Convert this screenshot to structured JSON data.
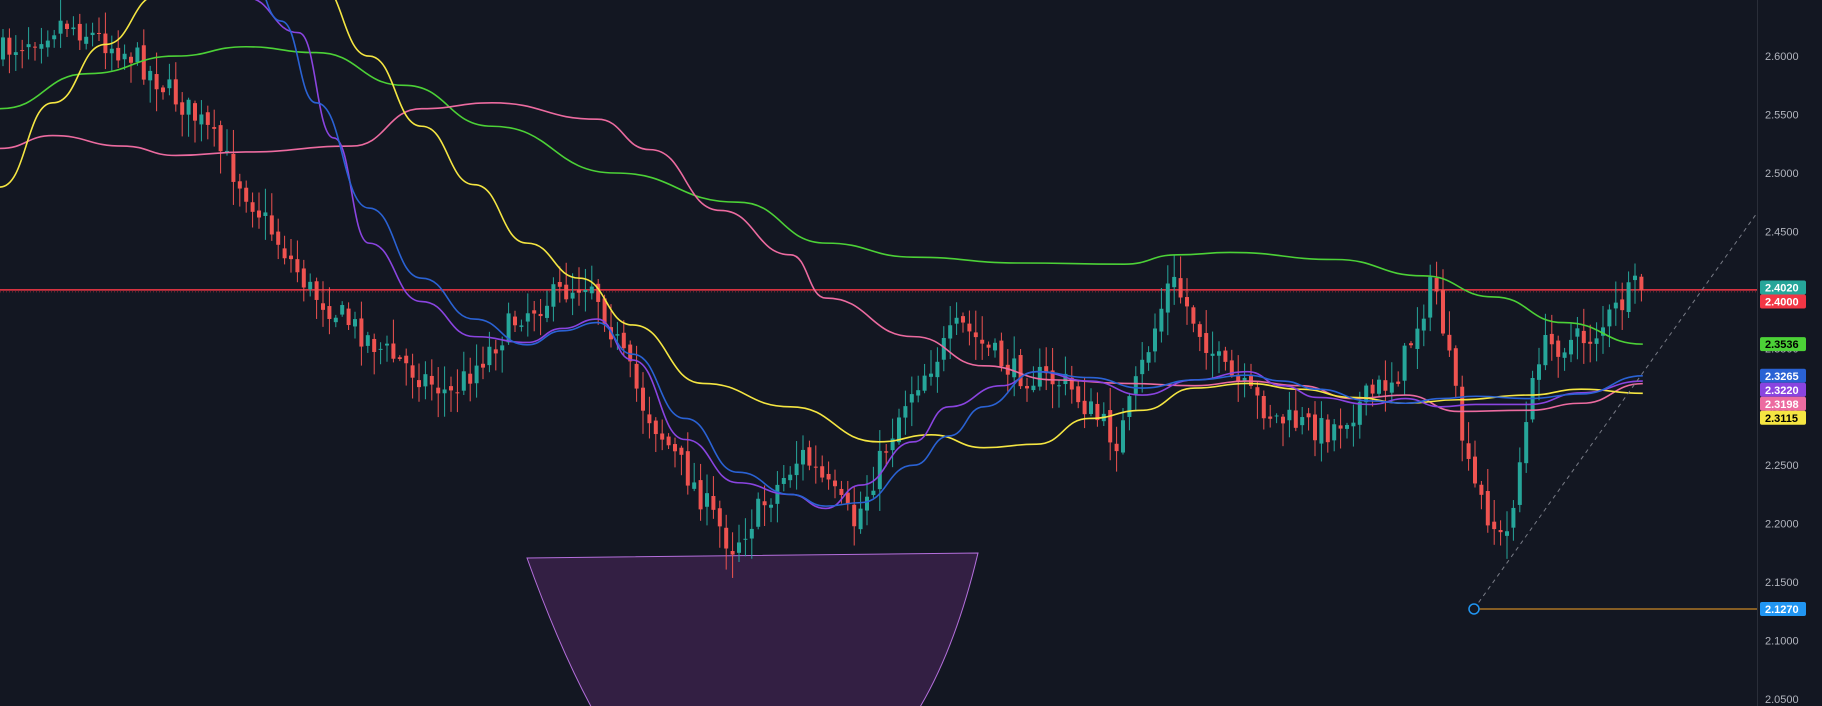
{
  "chart_data": {
    "type": "candlestick",
    "y_axis": {
      "position": "right",
      "ticks": [
        "2.6000",
        "2.5500",
        "2.5000",
        "2.4500",
        "2.4000",
        "2.3500",
        "2.3000",
        "2.2500",
        "2.2000",
        "2.1500",
        "2.1000",
        "2.0500"
      ],
      "ylim": [
        2.044,
        2.648
      ]
    },
    "colors": {
      "background": "#131722",
      "up_candle": "#26a69a",
      "down_candle": "#ef5350",
      "horizontal_line": "#f23645",
      "ma_green": "#4cd137",
      "ma_pink": "#ec6ba0",
      "ma_yellow": "#f5e642",
      "ma_purple": "#8a44e0",
      "ma_blue": "#2a62d4",
      "trendline": "#787b86",
      "low_marker": "#2196f3",
      "low_line": "#f7a325",
      "shape_fill": "#3a2149",
      "shape_stroke": "#b46fdc"
    },
    "horizontal_level": 2.4,
    "low_marker": {
      "price": 2.127,
      "label": "2.1270"
    },
    "price_tags": [
      {
        "label": "2.4020",
        "price": 2.402,
        "color": "#26a69a",
        "text_color": "#ffffff"
      },
      {
        "label": "2.4000",
        "price": 2.4,
        "color": "#f23645",
        "text_color": "#ffffff"
      },
      {
        "label": "2.3536",
        "price": 2.3536,
        "color": "#4cd137",
        "text_color": "#000000"
      },
      {
        "label": "2.3265",
        "price": 2.3265,
        "color": "#2a62d4",
        "text_color": "#ffffff"
      },
      {
        "label": "2.3220",
        "price": 2.322,
        "color": "#8a44e0",
        "text_color": "#ffffff"
      },
      {
        "label": "2.3198",
        "price": 2.3198,
        "color": "#ec6ba0",
        "text_color": "#ffffff"
      },
      {
        "label": "2.3115",
        "price": 2.3115,
        "color": "#f5e642",
        "text_color": "#000000"
      },
      {
        "label": "2.1270",
        "price": 2.127,
        "color": "#2196f3",
        "text_color": "#ffffff"
      }
    ],
    "candle_segments": [
      [
        0.0,
        2.6
      ],
      [
        0.04,
        2.63
      ],
      [
        0.08,
        2.6
      ],
      [
        0.12,
        2.54
      ],
      [
        0.15,
        2.47
      ],
      [
        0.18,
        2.4
      ],
      [
        0.22,
        2.35
      ],
      [
        0.26,
        2.31
      ],
      [
        0.3,
        2.38
      ],
      [
        0.34,
        2.41
      ],
      [
        0.37,
        2.3
      ],
      [
        0.4,
        2.23
      ],
      [
        0.42,
        2.18
      ],
      [
        0.46,
        2.26
      ],
      [
        0.49,
        2.2
      ],
      [
        0.52,
        2.31
      ],
      [
        0.55,
        2.37
      ],
      [
        0.58,
        2.33
      ],
      [
        0.61,
        2.32
      ],
      [
        0.64,
        2.27
      ],
      [
        0.67,
        2.41
      ],
      [
        0.7,
        2.33
      ],
      [
        0.73,
        2.29
      ],
      [
        0.76,
        2.28
      ],
      [
        0.8,
        2.33
      ],
      [
        0.82,
        2.41
      ],
      [
        0.84,
        2.24
      ],
      [
        0.86,
        2.18
      ],
      [
        0.88,
        2.35
      ],
      [
        0.91,
        2.36
      ],
      [
        0.935,
        2.402
      ]
    ],
    "moving_averages": [
      {
        "key": "ma_green",
        "points": [
          [
            0.0,
            2.555
          ],
          [
            0.05,
            2.585
          ],
          [
            0.1,
            2.6
          ],
          [
            0.14,
            2.608
          ],
          [
            0.18,
            2.603
          ],
          [
            0.23,
            2.575
          ],
          [
            0.28,
            2.54
          ],
          [
            0.35,
            2.5
          ],
          [
            0.42,
            2.475
          ],
          [
            0.47,
            2.44
          ],
          [
            0.52,
            2.428
          ],
          [
            0.58,
            2.423
          ],
          [
            0.64,
            2.422
          ],
          [
            0.67,
            2.43
          ],
          [
            0.7,
            2.432
          ],
          [
            0.76,
            2.426
          ],
          [
            0.81,
            2.412
          ],
          [
            0.85,
            2.394
          ],
          [
            0.89,
            2.372
          ],
          [
            0.935,
            2.3536
          ]
        ]
      },
      {
        "key": "ma_pink",
        "points": [
          [
            0.0,
            2.521
          ],
          [
            0.03,
            2.532
          ],
          [
            0.07,
            2.523
          ],
          [
            0.1,
            2.515
          ],
          [
            0.14,
            2.518
          ],
          [
            0.2,
            2.523
          ],
          [
            0.24,
            2.555
          ],
          [
            0.28,
            2.56
          ],
          [
            0.34,
            2.546
          ],
          [
            0.37,
            2.52
          ],
          [
            0.41,
            2.468
          ],
          [
            0.45,
            2.43
          ],
          [
            0.47,
            2.393
          ],
          [
            0.52,
            2.36
          ],
          [
            0.56,
            2.335
          ],
          [
            0.6,
            2.323
          ],
          [
            0.64,
            2.32
          ],
          [
            0.68,
            2.318
          ],
          [
            0.71,
            2.322
          ],
          [
            0.74,
            2.318
          ],
          [
            0.77,
            2.307
          ],
          [
            0.8,
            2.31
          ],
          [
            0.83,
            2.296
          ],
          [
            0.87,
            2.297
          ],
          [
            0.9,
            2.303
          ],
          [
            0.935,
            2.3198
          ]
        ]
      },
      {
        "key": "ma_yellow",
        "points": [
          [
            0.0,
            2.488
          ],
          [
            0.03,
            2.56
          ],
          [
            0.06,
            2.61
          ],
          [
            0.09,
            2.652
          ],
          [
            0.13,
            2.67
          ],
          [
            0.18,
            2.665
          ],
          [
            0.21,
            2.6
          ],
          [
            0.24,
            2.54
          ],
          [
            0.27,
            2.49
          ],
          [
            0.3,
            2.44
          ],
          [
            0.33,
            2.41
          ],
          [
            0.36,
            2.37
          ],
          [
            0.4,
            2.32
          ],
          [
            0.45,
            2.3
          ],
          [
            0.5,
            2.27
          ],
          [
            0.53,
            2.276
          ],
          [
            0.56,
            2.265
          ],
          [
            0.59,
            2.268
          ],
          [
            0.62,
            2.29
          ],
          [
            0.65,
            2.297
          ],
          [
            0.68,
            2.316
          ],
          [
            0.71,
            2.32
          ],
          [
            0.74,
            2.315
          ],
          [
            0.77,
            2.308
          ],
          [
            0.8,
            2.303
          ],
          [
            0.83,
            2.306
          ],
          [
            0.87,
            2.31
          ],
          [
            0.9,
            2.315
          ],
          [
            0.935,
            2.3115
          ]
        ]
      },
      {
        "key": "ma_purple",
        "points": [
          [
            0.11,
            2.66
          ],
          [
            0.14,
            2.65
          ],
          [
            0.17,
            2.62
          ],
          [
            0.19,
            2.53
          ],
          [
            0.21,
            2.44
          ],
          [
            0.24,
            2.39
          ],
          [
            0.27,
            2.36
          ],
          [
            0.3,
            2.355
          ],
          [
            0.32,
            2.367
          ],
          [
            0.34,
            2.375
          ],
          [
            0.36,
            2.34
          ],
          [
            0.39,
            2.272
          ],
          [
            0.42,
            2.235
          ],
          [
            0.45,
            2.225
          ],
          [
            0.47,
            2.213
          ],
          [
            0.49,
            2.233
          ],
          [
            0.52,
            2.27
          ],
          [
            0.54,
            2.3
          ],
          [
            0.57,
            2.318
          ],
          [
            0.59,
            2.33
          ],
          [
            0.62,
            2.322
          ],
          [
            0.65,
            2.31
          ],
          [
            0.68,
            2.323
          ],
          [
            0.71,
            2.33
          ],
          [
            0.73,
            2.318
          ],
          [
            0.75,
            2.308
          ],
          [
            0.78,
            2.302
          ],
          [
            0.8,
            2.307
          ],
          [
            0.82,
            2.3
          ],
          [
            0.84,
            2.302
          ],
          [
            0.87,
            2.302
          ],
          [
            0.9,
            2.312
          ],
          [
            0.935,
            2.322
          ]
        ]
      },
      {
        "key": "ma_blue",
        "points": [
          [
            0.14,
            2.68
          ],
          [
            0.16,
            2.63
          ],
          [
            0.18,
            2.56
          ],
          [
            0.21,
            2.47
          ],
          [
            0.24,
            2.41
          ],
          [
            0.27,
            2.375
          ],
          [
            0.3,
            2.353
          ],
          [
            0.32,
            2.365
          ],
          [
            0.34,
            2.372
          ],
          [
            0.36,
            2.345
          ],
          [
            0.39,
            2.29
          ],
          [
            0.42,
            2.244
          ],
          [
            0.45,
            2.225
          ],
          [
            0.47,
            2.215
          ],
          [
            0.49,
            2.218
          ],
          [
            0.52,
            2.25
          ],
          [
            0.54,
            2.275
          ],
          [
            0.56,
            2.3
          ],
          [
            0.59,
            2.33
          ],
          [
            0.62,
            2.325
          ],
          [
            0.65,
            2.316
          ],
          [
            0.68,
            2.323
          ],
          [
            0.71,
            2.327
          ],
          [
            0.73,
            2.322
          ],
          [
            0.75,
            2.315
          ],
          [
            0.78,
            2.305
          ],
          [
            0.8,
            2.303
          ],
          [
            0.82,
            2.307
          ],
          [
            0.84,
            2.309
          ],
          [
            0.87,
            2.307
          ],
          [
            0.9,
            2.311
          ],
          [
            0.935,
            2.3265
          ]
        ]
      }
    ]
  }
}
